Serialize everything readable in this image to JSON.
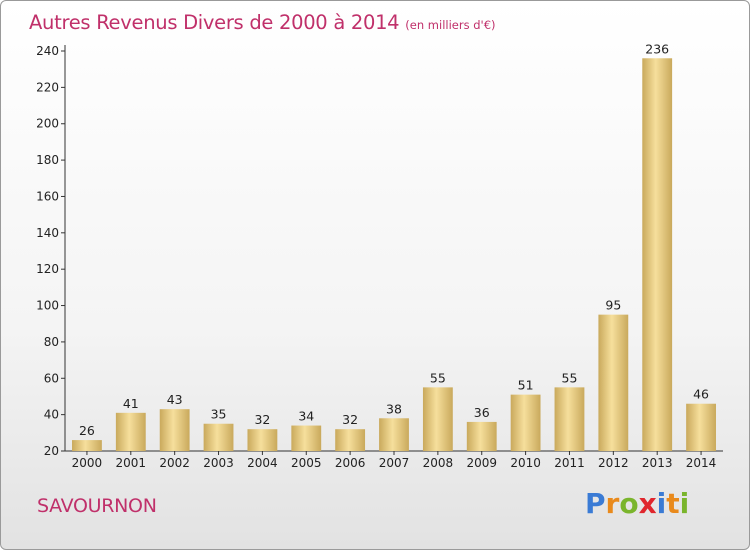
{
  "chart_data": {
    "type": "bar",
    "title": "Autres Revenus Divers de 2000 à 2014",
    "subtitle": "(en milliers d'€)",
    "categories": [
      "2000",
      "2001",
      "2002",
      "2003",
      "2004",
      "2005",
      "2006",
      "2007",
      "2008",
      "2009",
      "2010",
      "2011",
      "2012",
      "2013",
      "2014"
    ],
    "values": [
      26,
      41,
      43,
      35,
      32,
      34,
      32,
      38,
      55,
      36,
      51,
      55,
      95,
      236,
      46
    ],
    "ylim": [
      20,
      240
    ],
    "yticks": [
      20,
      40,
      60,
      80,
      100,
      120,
      140,
      160,
      180,
      200,
      220,
      240
    ],
    "xlabel": "",
    "ylabel": "",
    "grid": false,
    "bar_color_light": "#f6df9c",
    "bar_color_dark": "#c9a95c"
  },
  "footer": {
    "commune": "SAVOURNON",
    "logo_letters": [
      {
        "ch": "P",
        "color": "#3a7bd5"
      },
      {
        "ch": "r",
        "color": "#e98a1c"
      },
      {
        "ch": "o",
        "color": "#7ab52c"
      },
      {
        "ch": "x",
        "color": "#e0262d"
      },
      {
        "ch": "i",
        "color": "#3a7bd5"
      },
      {
        "ch": "t",
        "color": "#e98a1c"
      },
      {
        "ch": "i",
        "color": "#7ab52c"
      }
    ]
  }
}
